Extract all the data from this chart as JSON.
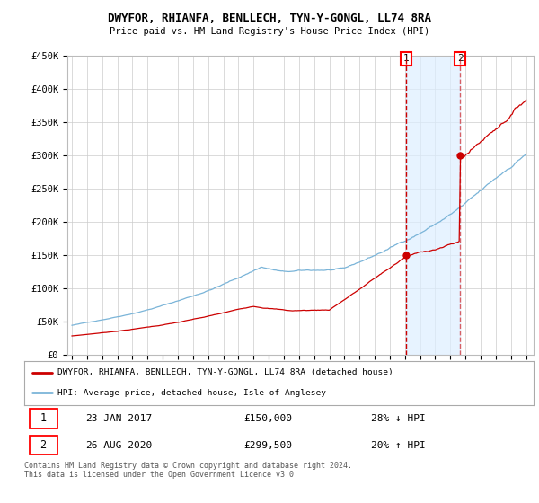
{
  "title": "DWYFOR, RHIANFA, BENLLECH, TYN-Y-GONGL, LL74 8RA",
  "subtitle": "Price paid vs. HM Land Registry's House Price Index (HPI)",
  "ylim": [
    0,
    450000
  ],
  "yticks": [
    0,
    50000,
    100000,
    150000,
    200000,
    250000,
    300000,
    350000,
    400000,
    450000
  ],
  "ytick_labels": [
    "£0",
    "£50K",
    "£100K",
    "£150K",
    "£200K",
    "£250K",
    "£300K",
    "£350K",
    "£400K",
    "£450K"
  ],
  "sale1_date": 2017.07,
  "sale1_price": 150000,
  "sale1_label": "23-JAN-2017",
  "sale1_pct": "28% ↓ HPI",
  "sale2_date": 2020.65,
  "sale2_price": 299500,
  "sale2_label": "26-AUG-2020",
  "sale2_pct": "20% ↑ HPI",
  "hpi_color": "#7ab4d8",
  "sale_color": "#cc0000",
  "vline_color": "#cc0000",
  "legend_entry1": "DWYFOR, RHIANFA, BENLLECH, TYN-Y-GONGL, LL74 8RA (detached house)",
  "legend_entry2": "HPI: Average price, detached house, Isle of Anglesey",
  "footer": "Contains HM Land Registry data © Crown copyright and database right 2024.\nThis data is licensed under the Open Government Licence v3.0.",
  "background_color": "#ffffff",
  "grid_color": "#cccccc",
  "shade_color": "#ddeeff"
}
